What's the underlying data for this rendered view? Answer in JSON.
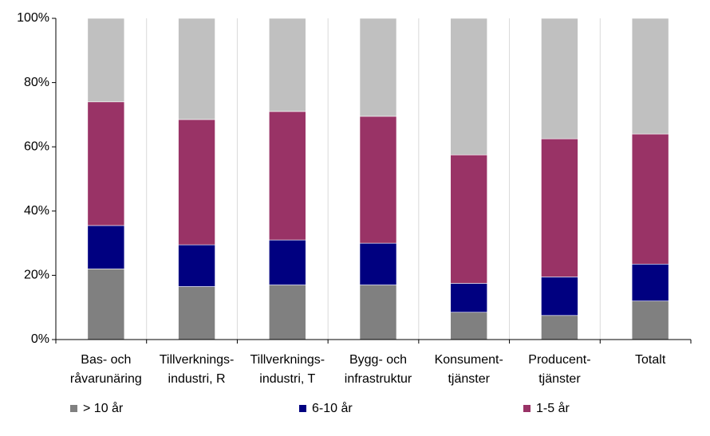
{
  "chart_data": {
    "type": "bar",
    "stacked": true,
    "categories": [
      "Bas- och\nråvarunäring",
      "Tillverknings-\nindustri, R",
      "Tillverknings-\nindustri, T",
      "Bygg- och\ninfrastruktur",
      "Konsument-\ntjänster",
      "Producent-\ntjänster",
      "Totalt"
    ],
    "series": [
      {
        "name": "> 10 år",
        "color": "#808080",
        "values": [
          22,
          16.5,
          17,
          17,
          8.5,
          7.5,
          12
        ]
      },
      {
        "name": "6-10 år",
        "color": "#000080",
        "values": [
          13.5,
          13,
          14,
          13,
          9,
          12,
          11.5
        ]
      },
      {
        "name": "1-5 år",
        "color": "#993366",
        "values": [
          38.5,
          39,
          40,
          39.5,
          40,
          43,
          40.5
        ]
      },
      {
        "color": "#c0c0c0",
        "values": [
          26,
          31.5,
          29,
          30.5,
          42.5,
          37.5,
          36
        ]
      }
    ],
    "ylim": [
      0,
      100
    ],
    "yticks": [
      {
        "value": 0,
        "label": "0%"
      },
      {
        "value": 20,
        "label": "20%"
      },
      {
        "value": 40,
        "label": "40%"
      },
      {
        "value": 60,
        "label": "60%"
      },
      {
        "value": 80,
        "label": "80%"
      },
      {
        "value": 100,
        "label": "100%"
      }
    ],
    "legend": "bottom"
  }
}
